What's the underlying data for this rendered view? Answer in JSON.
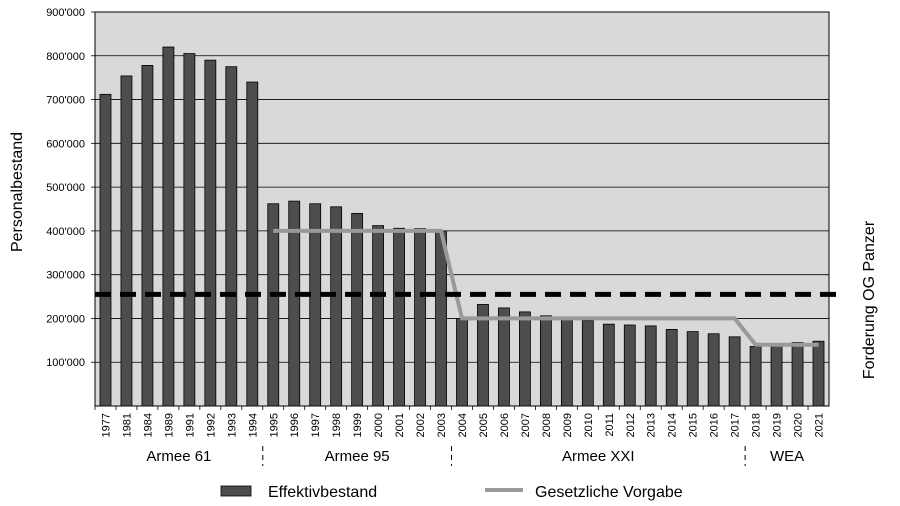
{
  "chart_data": {
    "type": "bar",
    "ylabel": "Personalbestand",
    "ylim": [
      0,
      900000
    ],
    "yticks": [
      "900'000",
      "800'000",
      "700'000",
      "600'000",
      "500'000",
      "400'000",
      "300'000",
      "200'000",
      "100'000"
    ],
    "categories": [
      "1977",
      "1981",
      "1984",
      "1989",
      "1991",
      "1992",
      "1993",
      "1994",
      "1995",
      "1996",
      "1997",
      "1998",
      "1999",
      "2000",
      "2001",
      "2002",
      "2003",
      "2004",
      "2005",
      "2006",
      "2007",
      "2008",
      "2009",
      "2010",
      "2011",
      "2012",
      "2013",
      "2014",
      "2015",
      "2016",
      "2017",
      "2018",
      "2019",
      "2020",
      "2021"
    ],
    "series": [
      {
        "name": "Effektivbestand",
        "type": "bar",
        "color": "#4d4d4d",
        "values": [
          712000,
          754000,
          778000,
          820000,
          805000,
          790000,
          775000,
          740000,
          462000,
          468000,
          462000,
          455000,
          440000,
          412000,
          406000,
          405000,
          400000,
          200000,
          232000,
          224000,
          215000,
          206000,
          198000,
          195000,
          187000,
          185000,
          183000,
          175000,
          170000,
          165000,
          158000,
          136000,
          140000,
          145000,
          148000
        ]
      },
      {
        "name": "Gesetzliche Vorgabe",
        "type": "line",
        "color": "#999999",
        "values": [
          null,
          null,
          null,
          null,
          null,
          null,
          null,
          null,
          400000,
          400000,
          400000,
          400000,
          400000,
          400000,
          400000,
          400000,
          400000,
          200000,
          200000,
          200000,
          200000,
          200000,
          200000,
          200000,
          200000,
          200000,
          200000,
          200000,
          200000,
          200000,
          200000,
          140000,
          140000,
          140000,
          140000
        ]
      }
    ],
    "reference_line": {
      "value": 255000,
      "label": "Forderung OG Panzer",
      "style": "dashed",
      "color": "#000000"
    },
    "eras": [
      {
        "label": "Armee 61",
        "start": "1977",
        "end": "1994"
      },
      {
        "label": "Armee 95",
        "start": "1995",
        "end": "2003"
      },
      {
        "label": "Armee XXI",
        "start": "2004",
        "end": "2017"
      },
      {
        "label": "WEA",
        "start": "2018",
        "end": "2021"
      }
    ],
    "grid": true,
    "legend": "bottom",
    "plot_background": "#d9d9d9"
  }
}
